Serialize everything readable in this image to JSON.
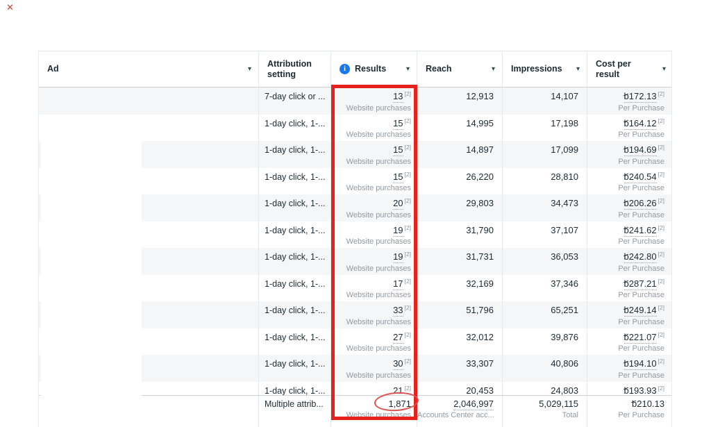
{
  "annotations": {
    "close_x": "✕",
    "box_color": "#e8211d",
    "circle_color": "#d9534f",
    "circled_value": "1,871"
  },
  "icons": {
    "caret": "▾",
    "info": "i"
  },
  "labels": {
    "results_sub": "Website purchases",
    "cost_sub": "Per Purchase",
    "footnote": "[2]",
    "currency_symbol": "b"
  },
  "table": {
    "columns": [
      {
        "label": "Ad"
      },
      {
        "label": "Attribution setting"
      },
      {
        "label": "Results"
      },
      {
        "label": "Reach"
      },
      {
        "label": "Impressions"
      },
      {
        "label": "Cost per result"
      }
    ],
    "rows": [
      {
        "attribution": "7-day click or ...",
        "results": "13",
        "reach": "12,913",
        "impressions": "14,107",
        "cost": "172.13"
      },
      {
        "attribution": "1-day click, 1-...",
        "results": "15",
        "reach": "14,995",
        "impressions": "17,198",
        "cost": "164.12"
      },
      {
        "attribution": "1-day click, 1-...",
        "results": "15",
        "reach": "14,897",
        "impressions": "17,099",
        "cost": "194.69"
      },
      {
        "attribution": "1-day click, 1-...",
        "results": "15",
        "reach": "26,220",
        "impressions": "28,810",
        "cost": "240.54"
      },
      {
        "attribution": "1-day click, 1-...",
        "results": "20",
        "reach": "29,803",
        "impressions": "34,473",
        "cost": "206.26"
      },
      {
        "attribution": "1-day click, 1-...",
        "results": "19",
        "reach": "31,790",
        "impressions": "37,107",
        "cost": "241.62"
      },
      {
        "attribution": "1-day click, 1-...",
        "results": "19",
        "reach": "31,731",
        "impressions": "36,053",
        "cost": "242.80"
      },
      {
        "attribution": "1-day click, 1-...",
        "results": "17",
        "reach": "32,169",
        "impressions": "37,346",
        "cost": "287.21"
      },
      {
        "attribution": "1-day click, 1-...",
        "results": "33",
        "reach": "51,796",
        "impressions": "65,251",
        "cost": "249.14"
      },
      {
        "attribution": "1-day click, 1-...",
        "results": "27",
        "reach": "32,012",
        "impressions": "39,876",
        "cost": "221.07"
      },
      {
        "attribution": "1-day click, 1-...",
        "results": "30",
        "reach": "33,307",
        "impressions": "40,806",
        "cost": "194.10"
      },
      {
        "attribution": "1-day click, 1-...",
        "results": "21",
        "reach": "20,453",
        "impressions": "24,803",
        "cost": "193.93"
      }
    ],
    "total": {
      "attribution": "Multiple attrib...",
      "results": "1,871",
      "results_sub": "Website purchases",
      "reach": "2,046,997",
      "reach_sub": "Accounts Center acc...",
      "impressions": "5,029,115",
      "impressions_sub": "Total",
      "cost": "210.13",
      "cost_sub": "Per Purchase"
    }
  },
  "colors": {
    "accent_blue": "#1877f2",
    "text_primary": "#1c2b33",
    "text_secondary": "#8d949e",
    "zebra": "#f5f6f8"
  }
}
